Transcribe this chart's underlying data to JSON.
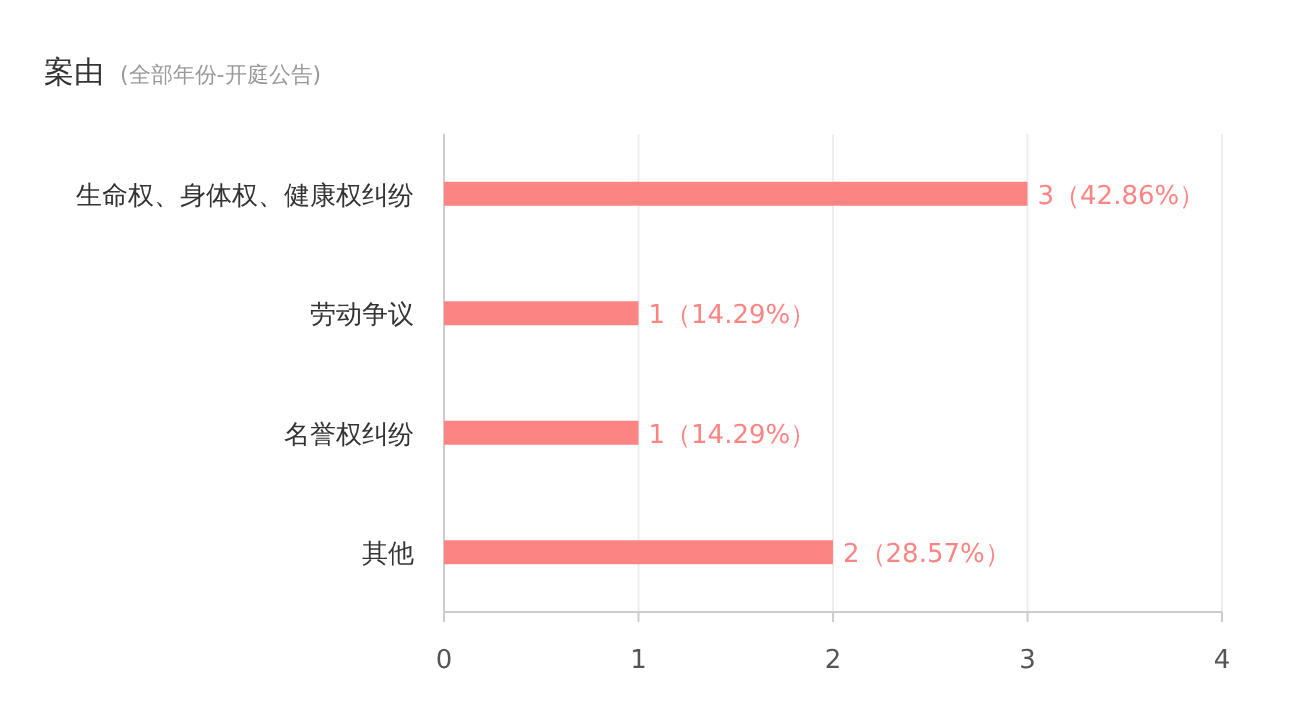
{
  "chart_data": {
    "type": "bar",
    "orientation": "horizontal",
    "title": "案由",
    "subtitle": "(全部年份-开庭公告)",
    "categories": [
      "生命权、身体权、健康权纠纷",
      "劳动争议",
      "名誉权纠纷",
      "其他"
    ],
    "values": [
      3,
      1,
      1,
      2
    ],
    "value_labels": [
      "3（42.86%）",
      "1（14.29%）",
      "1（14.29%）",
      "2（28.57%）"
    ],
    "color": "#fc8583",
    "xlim": [
      0,
      4
    ],
    "xticks": [
      0,
      1,
      2,
      3,
      4
    ],
    "grid": "x"
  }
}
